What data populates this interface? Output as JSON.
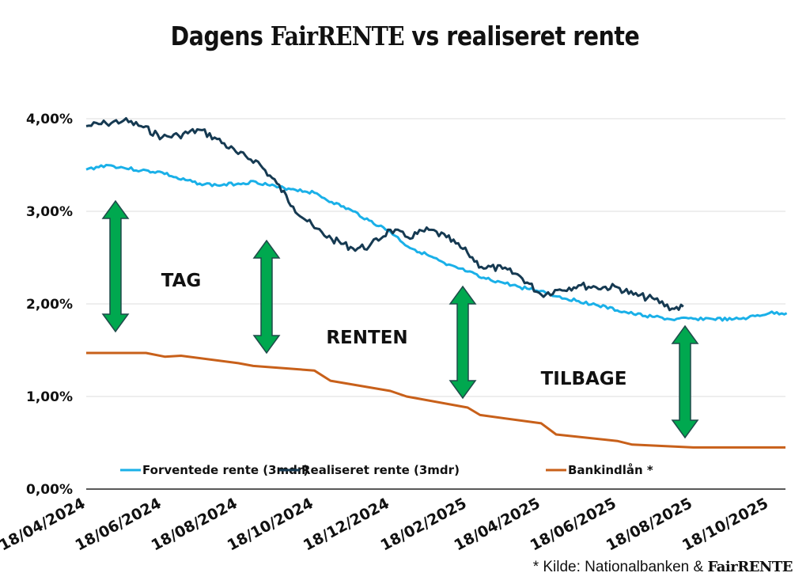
{
  "title": {
    "prefix": "Dagens ",
    "brand": "FairRENTE",
    "suffix": " vs realiseret rente"
  },
  "footer": {
    "prefix": "* Kilde: Nationalbanken & ",
    "brand": "FairRENTE"
  },
  "annotations": [
    "TAG",
    "RENTEN",
    "TILBAGE"
  ],
  "colors": {
    "forventede": "#1ab0e8",
    "realiseret": "#163a52",
    "bankindlaan": "#c8601a",
    "arrow_fill": "#00a84f",
    "arrow_stroke": "#1f4a4a",
    "grid": "#dddddd",
    "axis": "#222222"
  },
  "chart_data": {
    "type": "line",
    "title": "Dagens FairRENTE vs realiseret rente",
    "xlabel": "",
    "ylabel": "",
    "ylim": [
      0,
      4.0
    ],
    "yticks": [
      "0,00%",
      "1,00%",
      "2,00%",
      "3,00%",
      "4,00%"
    ],
    "grid": true,
    "legend_position": "bottom",
    "x_tick_labels": [
      "18/04/2024",
      "18/06/2024",
      "18/08/2024",
      "18/10/2024",
      "18/12/2024",
      "18/02/2025",
      "18/04/2025",
      "18/06/2025",
      "18/08/2025",
      "18/10/2025"
    ],
    "series": [
      {
        "name": "Forventede rente (3mdr)",
        "key": "forventede",
        "x_dates": [
          "18/04/2024",
          "04/05/2024",
          "18/05/2024",
          "01/06/2024",
          "18/06/2024",
          "01/07/2024",
          "18/07/2024",
          "01/08/2024",
          "18/08/2024",
          "01/09/2024",
          "18/09/2024",
          "01/10/2024",
          "18/10/2024",
          "01/11/2024",
          "18/11/2024",
          "01/12/2024",
          "18/12/2024",
          "01/01/2025",
          "18/01/2025",
          "01/02/2025",
          "18/02/2025",
          "01/03/2025",
          "18/03/2025",
          "01/04/2025",
          "18/04/2025",
          "01/05/2025",
          "18/05/2025",
          "01/06/2025",
          "18/06/2025",
          "01/07/2025",
          "18/07/2025",
          "01/08/2025",
          "18/08/2025",
          "01/09/2025",
          "18/09/2025",
          "01/10/2025",
          "18/10/2025",
          "01/11/2025"
        ],
        "values": [
          3.45,
          3.5,
          3.47,
          3.44,
          3.42,
          3.35,
          3.3,
          3.28,
          3.3,
          3.32,
          3.26,
          3.24,
          3.2,
          3.1,
          3.0,
          2.9,
          2.78,
          2.62,
          2.52,
          2.42,
          2.35,
          2.28,
          2.23,
          2.18,
          2.14,
          2.08,
          2.03,
          1.99,
          1.93,
          1.89,
          1.86,
          1.83,
          1.84,
          1.84,
          1.83,
          1.85,
          1.9,
          1.9
        ]
      },
      {
        "name": "Realiseret rente (3mdr)",
        "key": "realiseret",
        "x_dates": [
          "18/04/2024",
          "04/05/2024",
          "18/05/2024",
          "01/06/2024",
          "18/06/2024",
          "01/07/2024",
          "18/07/2024",
          "01/08/2024",
          "18/08/2024",
          "01/09/2024",
          "18/09/2024",
          "01/10/2024",
          "18/10/2024",
          "01/11/2024",
          "18/11/2024",
          "01/12/2024",
          "18/12/2024",
          "01/01/2025",
          "18/01/2025",
          "01/02/2025",
          "18/02/2025",
          "01/03/2025",
          "18/03/2025",
          "01/04/2025",
          "18/04/2025",
          "01/05/2025",
          "18/05/2025",
          "01/06/2025",
          "18/06/2025",
          "01/07/2025",
          "18/07/2025",
          "01/08/2025",
          "10/08/2025"
        ],
        "values": [
          3.92,
          3.95,
          3.98,
          3.92,
          3.8,
          3.82,
          3.88,
          3.78,
          3.62,
          3.55,
          3.3,
          3.05,
          2.82,
          2.7,
          2.6,
          2.62,
          2.8,
          2.72,
          2.8,
          2.72,
          2.55,
          2.4,
          2.38,
          2.3,
          2.1,
          2.15,
          2.2,
          2.18,
          2.18,
          2.1,
          2.05,
          1.95,
          1.97
        ]
      },
      {
        "name": "Bankindlån *",
        "key": "bankindlaan",
        "x_dates": [
          "18/04/2024",
          "05/06/2024",
          "20/06/2024",
          "03/07/2024",
          "18/08/2024",
          "30/08/2024",
          "18/10/2024",
          "31/10/2024",
          "18/12/2024",
          "31/12/2024",
          "18/02/2025",
          "28/02/2025",
          "18/04/2025",
          "30/04/2025",
          "18/06/2025",
          "30/06/2025",
          "18/08/2025",
          "31/10/2025"
        ],
        "values": [
          1.47,
          1.47,
          1.43,
          1.44,
          1.36,
          1.33,
          1.28,
          1.17,
          1.06,
          1.0,
          0.88,
          0.8,
          0.71,
          0.59,
          0.52,
          0.48,
          0.45,
          0.45
        ]
      }
    ],
    "annotations": [
      "TAG",
      "RENTEN",
      "TILBAGE"
    ]
  },
  "legend": [
    {
      "label": "Forventede rente (3mdr)",
      "key": "forventede"
    },
    {
      "label": "Realiseret rente (3mdr)",
      "key": "realiseret"
    },
    {
      "label": "Bankindlån *",
      "key": "bankindlaan"
    }
  ]
}
